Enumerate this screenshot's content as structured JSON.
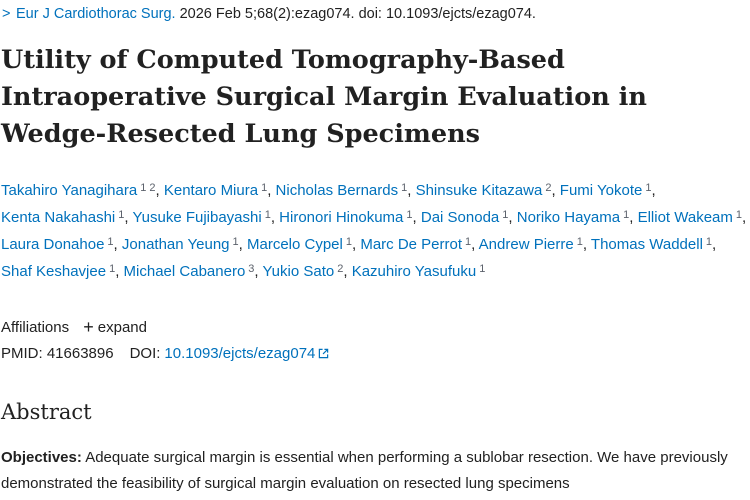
{
  "citation": {
    "chevron": ">",
    "journal": "Eur J Cardiothorac Surg.",
    "details": " 2026 Feb 5;68(2):ezag074. doi: 10.1093/ejcts/ezag074."
  },
  "title": "Utility of Computed Tomography-Based Intraoperative Surgical Margin Evaluation in Wedge-Resected Lung Specimens",
  "authors": [
    {
      "name": "Takahiro Yanagihara",
      "sup": "1 2"
    },
    {
      "name": "Kentaro Miura",
      "sup": "1"
    },
    {
      "name": "Nicholas Bernards",
      "sup": "1"
    },
    {
      "name": "Shinsuke Kitazawa",
      "sup": "2"
    },
    {
      "name": "Fumi Yokote",
      "sup": "1"
    },
    {
      "name": "Kenta Nakahashi",
      "sup": "1"
    },
    {
      "name": "Yusuke Fujibayashi",
      "sup": "1"
    },
    {
      "name": "Hironori Hinokuma",
      "sup": "1"
    },
    {
      "name": "Dai Sonoda",
      "sup": "1"
    },
    {
      "name": "Noriko Hayama",
      "sup": "1"
    },
    {
      "name": "Elliot Wakeam",
      "sup": "1"
    },
    {
      "name": "Laura Donahoe",
      "sup": "1"
    },
    {
      "name": "Jonathan Yeung",
      "sup": "1"
    },
    {
      "name": "Marcelo Cypel",
      "sup": "1"
    },
    {
      "name": "Marc De Perrot",
      "sup": "1"
    },
    {
      "name": "Andrew Pierre",
      "sup": "1"
    },
    {
      "name": "Thomas Waddell",
      "sup": "1"
    },
    {
      "name": "Shaf Keshavjee",
      "sup": "1"
    },
    {
      "name": "Michael Cabanero",
      "sup": "3"
    },
    {
      "name": "Yukio Sato",
      "sup": "2"
    },
    {
      "name": "Kazuhiro Yasufuku",
      "sup": "1"
    }
  ],
  "affiliations": {
    "label": "Affiliations",
    "expand_icon": "+",
    "expand_label": "expand"
  },
  "ids": {
    "pmid_label": "PMID: 41663896",
    "doi_label": "DOI:",
    "doi_value": "10.1093/ejcts/ezag074",
    "doi_icon": "external-link-icon"
  },
  "abstract": {
    "heading": "Abstract",
    "label": "Objectives:",
    "text": " Adequate surgical margin is essential when performing a sublobar resection. We have previously demonstrated the feasibility of surgical margin evaluation on resected lung specimens"
  },
  "colors": {
    "link": "#0071bc",
    "text": "#212121",
    "sup": "#5b616b"
  }
}
